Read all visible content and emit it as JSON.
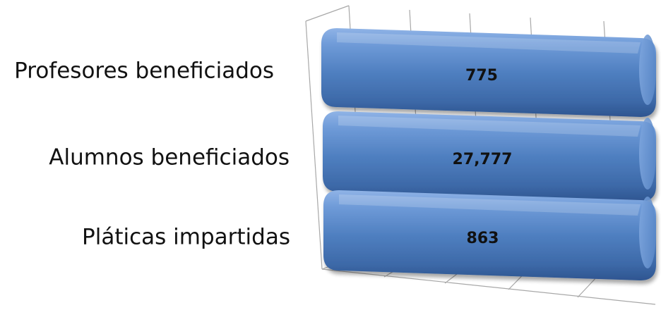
{
  "chart_data": {
    "type": "bar",
    "orientation": "horizontal",
    "three_d": true,
    "categories": [
      "Profesores beneficiados",
      "Alumnos beneficiados",
      "Pláticas impartidas"
    ],
    "series": [
      {
        "values": [
          775,
          27777,
          863
        ],
        "data_labels": [
          "775",
          "27,777",
          "863"
        ],
        "color": "#4f7fc0"
      }
    ],
    "grid": true,
    "legend": false,
    "value_axis_tick_labels": false
  }
}
